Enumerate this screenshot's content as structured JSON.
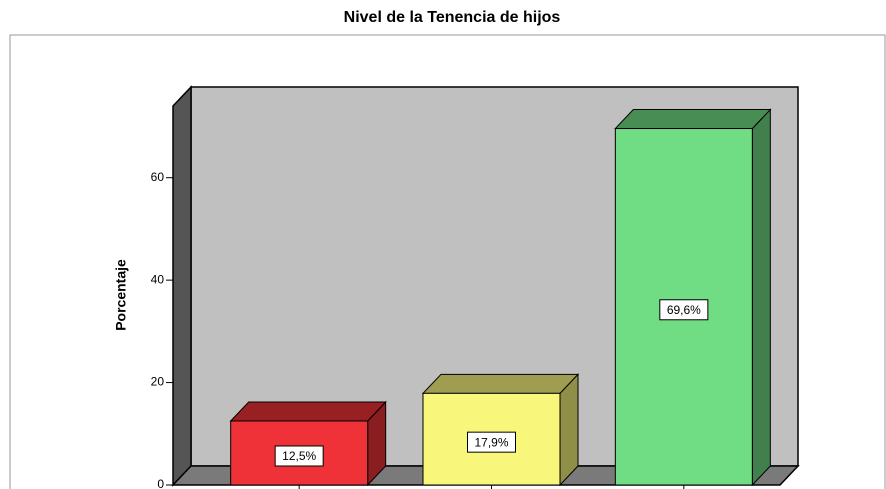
{
  "chart_data": {
    "type": "bar3d",
    "title": "Nivel de la Tenencia de hijos",
    "y_label": "Porcentaje",
    "categories": [
      null,
      null,
      null
    ],
    "values": [
      12.5,
      17.9,
      69.6
    ],
    "value_labels": [
      "12,5%",
      "17,9%",
      "69,6%"
    ],
    "colors": [
      "#ee3237",
      "#f9f67c",
      "#70dc84"
    ],
    "ylim": [
      0,
      74
    ],
    "yticks": [
      0,
      20,
      40,
      60
    ]
  }
}
